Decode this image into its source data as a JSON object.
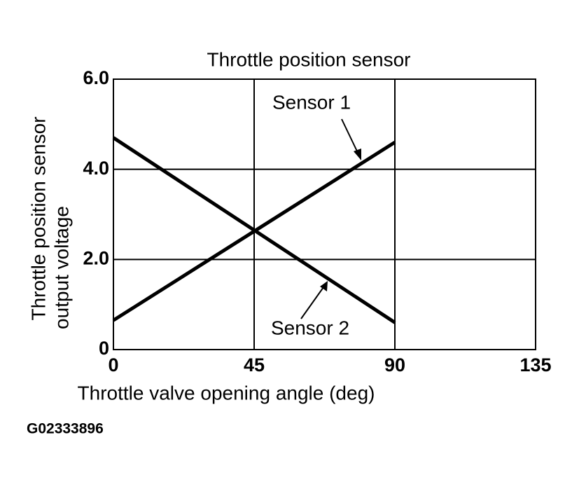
{
  "chart_data": {
    "type": "line",
    "title": "Throttle position sensor",
    "x_label": "Throttle valve opening angle (deg)",
    "y_label": [
      "Throttle position sensor",
      "output voltage"
    ],
    "x": [
      0,
      90
    ],
    "series": [
      {
        "name": "Sensor 1",
        "color": "#000000",
        "values": [
          0.65,
          4.6
        ]
      },
      {
        "name": "Sensor 2",
        "color": "#000000",
        "values": [
          4.7,
          0.6
        ]
      }
    ],
    "xlim": [
      0,
      135
    ],
    "xticks": [
      0,
      45,
      90,
      135
    ],
    "ylim": [
      0,
      6
    ],
    "yticks": [
      0,
      {
        "value": 2,
        "label": "2.0"
      },
      {
        "value": 4,
        "label": "4.0"
      },
      {
        "value": 6,
        "label": "6.0"
      }
    ],
    "grid": true,
    "figure_id": "G02333896"
  }
}
